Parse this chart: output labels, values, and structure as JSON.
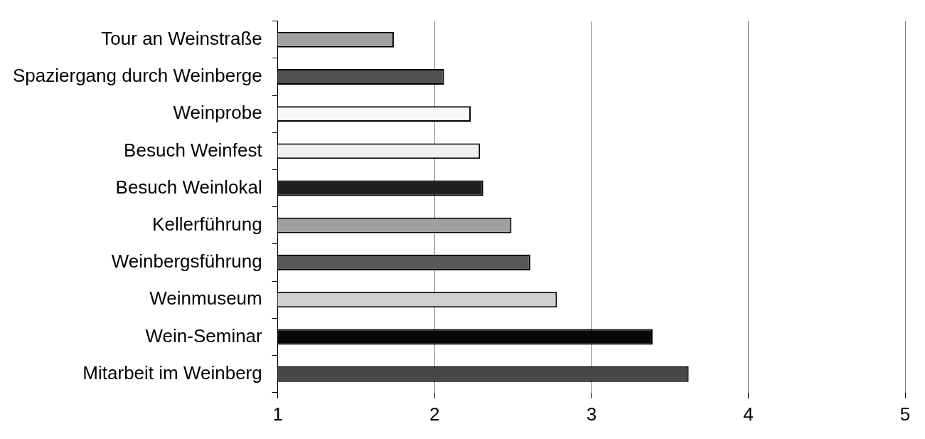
{
  "chart_data": {
    "type": "bar",
    "orientation": "horizontal",
    "categories": [
      "Tour an Weinstraße",
      "Spaziergang durch Weinberge",
      "Weinprobe",
      "Besuch Weinfest",
      "Besuch Weinlokal",
      "Kellerführung",
      "Weinbergsführung",
      "Weinmuseum",
      "Wein-Seminar",
      "Mitarbeit im Weinberg"
    ],
    "values": [
      1.74,
      2.06,
      2.23,
      2.29,
      2.31,
      2.49,
      2.61,
      2.78,
      3.39,
      3.62
    ],
    "colors": [
      "#a0a0a0",
      "#505050",
      "#f8f8f8",
      "#f0f0f0",
      "#202020",
      "#a0a0a0",
      "#585858",
      "#d0d0d0",
      "#080808",
      "#484848"
    ],
    "xlim": [
      1,
      5
    ],
    "xticks": [
      1,
      2,
      3,
      4,
      5
    ],
    "grid": "x"
  }
}
